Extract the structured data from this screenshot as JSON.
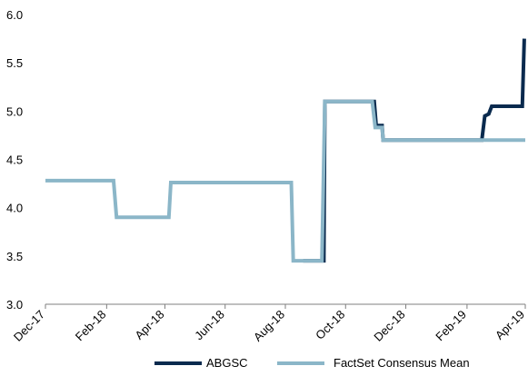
{
  "chart_data": {
    "type": "line",
    "title": "",
    "xlabel": "",
    "ylabel": "",
    "ylim": [
      3.0,
      6.0
    ],
    "y_ticks": [
      "3.0",
      "3.5",
      "4.0",
      "4.5",
      "5.0",
      "5.5",
      "6.0"
    ],
    "x_ticks": [
      "Dec-17",
      "Feb-18",
      "Apr-18",
      "Jun-18",
      "Aug-18",
      "Oct-18",
      "Dec-18",
      "Feb-19",
      "Apr-19"
    ],
    "grid": false,
    "legend_position": "bottom",
    "series": [
      {
        "name": "ABGSC",
        "color": "#0a2a4e",
        "points": [
          [
            "2018-08-19",
            3.45
          ],
          [
            "2018-09-09",
            3.45
          ],
          [
            "2018-09-10",
            5.1
          ],
          [
            "2018-10-30",
            5.1
          ],
          [
            "2018-11-01",
            4.85
          ],
          [
            "2018-11-07",
            4.85
          ],
          [
            "2018-11-08",
            4.7
          ],
          [
            "2019-02-16",
            4.7
          ],
          [
            "2019-02-19",
            4.95
          ],
          [
            "2019-02-23",
            4.97
          ],
          [
            "2019-02-26",
            5.05
          ],
          [
            "2019-03-29",
            5.05
          ],
          [
            "2019-03-31",
            5.75
          ]
        ]
      },
      {
        "name": "FactSet Consensus Mean",
        "color": "#8bb6c8",
        "points": [
          [
            "2017-12-01",
            4.28
          ],
          [
            "2018-02-08",
            4.28
          ],
          [
            "2018-02-11",
            3.9
          ],
          [
            "2018-04-05",
            3.9
          ],
          [
            "2018-04-07",
            4.26
          ],
          [
            "2018-08-07",
            4.26
          ],
          [
            "2018-08-09",
            3.45
          ],
          [
            "2018-09-07",
            3.45
          ],
          [
            "2018-09-10",
            5.1
          ],
          [
            "2018-10-28",
            5.1
          ],
          [
            "2018-10-31",
            4.83
          ],
          [
            "2018-11-07",
            4.83
          ],
          [
            "2018-11-08",
            4.7
          ],
          [
            "2019-04-01",
            4.7
          ]
        ]
      }
    ]
  }
}
